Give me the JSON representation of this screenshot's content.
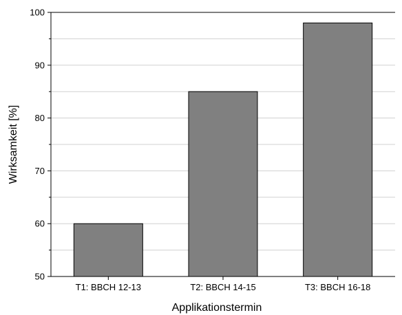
{
  "chart_data": {
    "type": "bar",
    "categories": [
      "T1: BBCH 12-13",
      "T2: BBCH 14-15",
      "T3: BBCH 16-18"
    ],
    "values": [
      60,
      85,
      98
    ],
    "xlabel": "Applikationstermin",
    "ylabel": "Wirksamkeit [%]",
    "ylim": [
      50,
      100
    ],
    "yticks": [
      50,
      60,
      70,
      80,
      90,
      100
    ],
    "grid": "horizontal",
    "bar_color": "#808080",
    "bar_edge_color": "#000000"
  }
}
